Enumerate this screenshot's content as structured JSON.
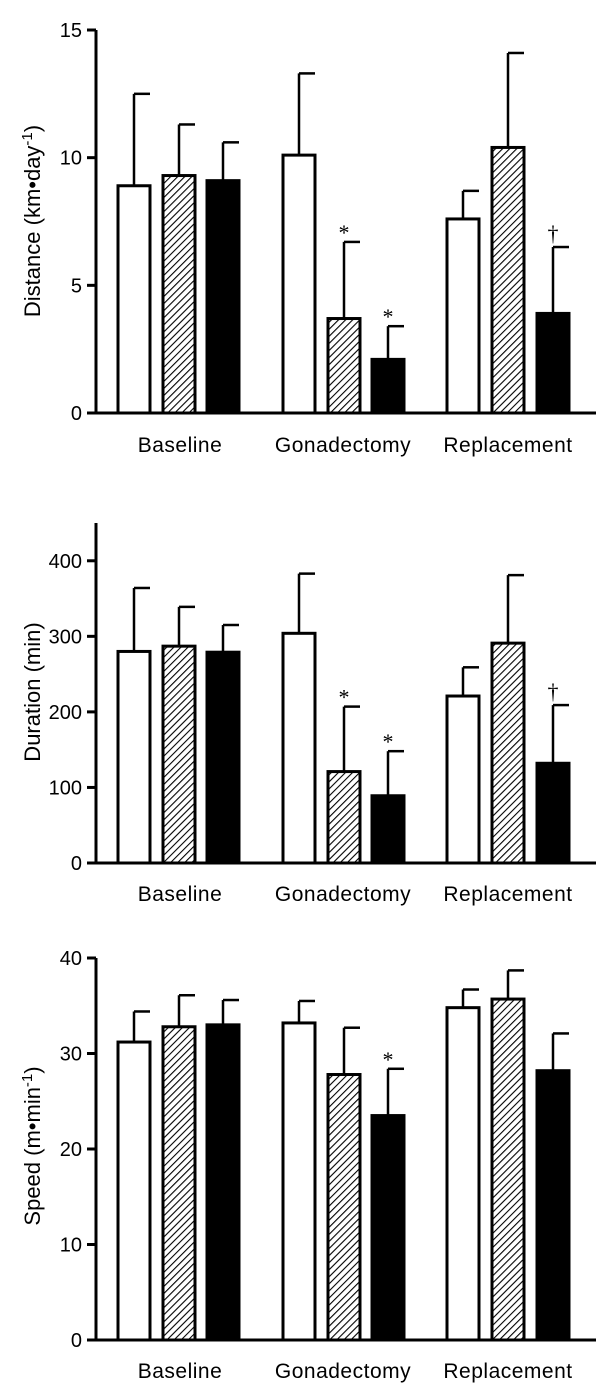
{
  "chart_data": [
    {
      "type": "bar",
      "ylabel": "Distance (km•day",
      "ylabel_sup": "-1",
      "ylabel_tail": ")",
      "ylim": [
        0,
        15
      ],
      "yticks": [
        0,
        5,
        10,
        15
      ],
      "categories": [
        "Baseline",
        "Gonadectomy",
        "Replacement"
      ],
      "series": [
        {
          "fill": "white",
          "values": [
            8.9,
            10.1,
            7.6
          ],
          "errors": [
            3.6,
            3.2,
            1.1
          ],
          "annotations": [
            "",
            "",
            ""
          ]
        },
        {
          "fill": "hatched",
          "values": [
            9.3,
            3.7,
            10.4
          ],
          "errors": [
            2.0,
            3.0,
            3.7
          ],
          "annotations": [
            "",
            "*",
            ""
          ]
        },
        {
          "fill": "black",
          "values": [
            9.1,
            2.1,
            3.9
          ],
          "errors": [
            1.5,
            1.3,
            2.6
          ],
          "annotations": [
            "",
            "*",
            "†"
          ]
        }
      ],
      "grid": false
    },
    {
      "type": "bar",
      "ylabel": "Duration (min)",
      "ylim": [
        0,
        450
      ],
      "yticks": [
        0,
        100,
        200,
        300,
        400
      ],
      "categories": [
        "Baseline",
        "Gonadectomy",
        "Replacement"
      ],
      "series": [
        {
          "fill": "white",
          "values": [
            280,
            304,
            221
          ],
          "errors": [
            84,
            79,
            38
          ],
          "annotations": [
            "",
            "",
            ""
          ]
        },
        {
          "fill": "hatched",
          "values": [
            287,
            121,
            291
          ],
          "errors": [
            52,
            86,
            90
          ],
          "annotations": [
            "",
            "*",
            ""
          ]
        },
        {
          "fill": "black",
          "values": [
            279,
            89,
            132
          ],
          "errors": [
            36,
            59,
            77
          ],
          "annotations": [
            "",
            "*",
            "†"
          ]
        }
      ],
      "grid": false
    },
    {
      "type": "bar",
      "ylabel": "Speed (m•min",
      "ylabel_sup": "-1",
      "ylabel_tail": ")",
      "ylim": [
        0,
        40
      ],
      "yticks": [
        0,
        10,
        20,
        30,
        40
      ],
      "categories": [
        "Baseline",
        "Gonadectomy",
        "Replacement"
      ],
      "series": [
        {
          "fill": "white",
          "values": [
            31.2,
            33.2,
            34.8
          ],
          "errors": [
            3.2,
            2.3,
            1.9
          ],
          "annotations": [
            "",
            "",
            ""
          ]
        },
        {
          "fill": "hatched",
          "values": [
            32.8,
            27.8,
            35.7
          ],
          "errors": [
            3.3,
            4.9,
            3.0
          ],
          "annotations": [
            "",
            "",
            ""
          ]
        },
        {
          "fill": "black",
          "values": [
            33.0,
            23.5,
            28.2
          ],
          "errors": [
            2.6,
            4.9,
            3.9
          ],
          "annotations": [
            "",
            "*",
            ""
          ]
        }
      ],
      "grid": false
    }
  ]
}
